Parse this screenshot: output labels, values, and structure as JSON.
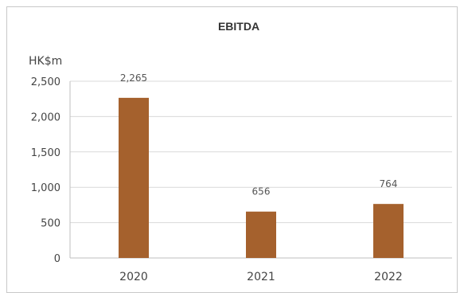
{
  "chart_data": {
    "type": "bar",
    "title": "EBITDA",
    "ylabel": "HK$m",
    "xlabel": "",
    "categories": [
      "2020",
      "2021",
      "2022"
    ],
    "values": [
      2265,
      656,
      764
    ],
    "data_labels": [
      "2,265",
      "656",
      "764"
    ],
    "ylim": [
      0,
      2500
    ],
    "yticks": [
      0,
      500,
      1000,
      1500,
      2000,
      2500
    ],
    "ytick_labels": [
      "0",
      "500",
      "1,000",
      "1,500",
      "2,000",
      "2,500"
    ],
    "grid": true,
    "legend": "none",
    "colors": {
      "bar": "#A5612D"
    }
  }
}
